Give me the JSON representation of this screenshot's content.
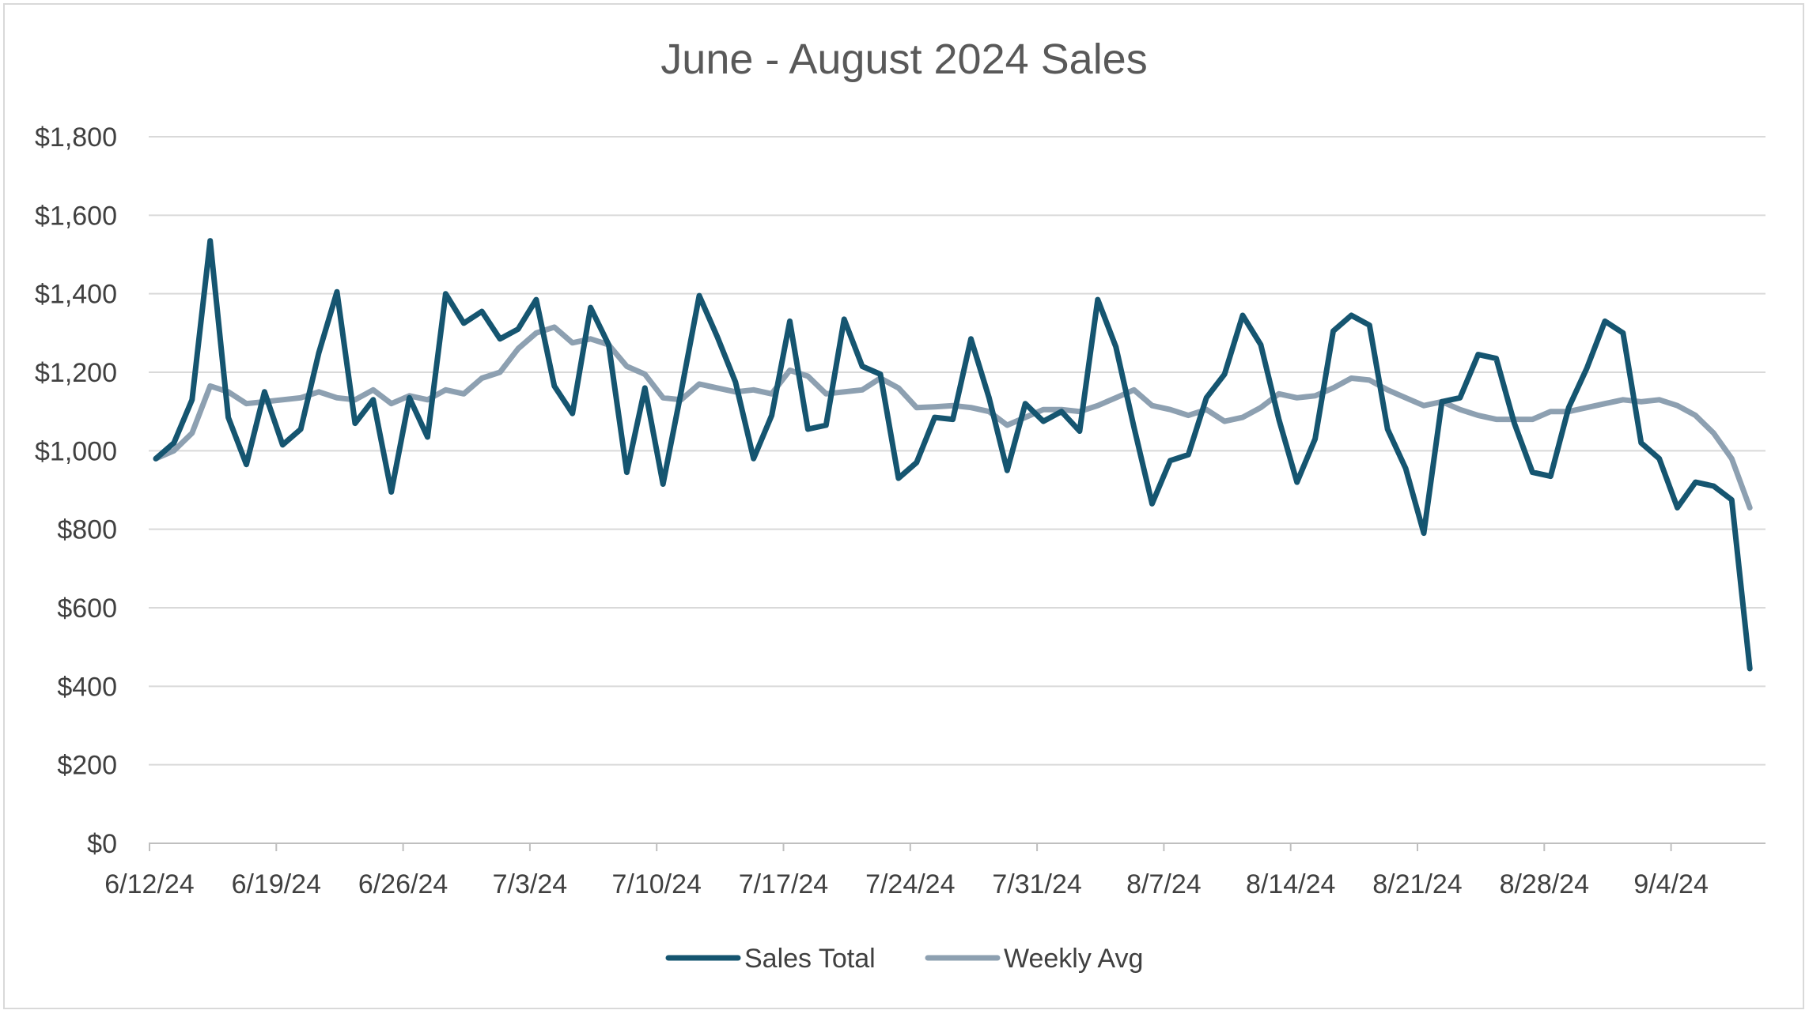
{
  "chart_data": {
    "type": "line",
    "title": "June - August 2024 Sales",
    "xlabel": "",
    "ylabel": "",
    "x_start": "6/12/24",
    "x_end": "9/8/24",
    "ylim": [
      0,
      1800
    ],
    "y_ticks": [
      0,
      200,
      400,
      600,
      800,
      1000,
      1200,
      1400,
      1600,
      1800
    ],
    "y_tick_labels": [
      "$0",
      "$200",
      "$400",
      "$600",
      "$800",
      "$1,000",
      "$1,200",
      "$1,400",
      "$1,600",
      "$1,800"
    ],
    "x_tick_labels": [
      "6/12/24",
      "6/19/24",
      "6/26/24",
      "7/3/24",
      "7/10/24",
      "7/17/24",
      "7/24/24",
      "7/31/24",
      "8/7/24",
      "8/14/24",
      "8/21/24",
      "8/28/24",
      "9/4/24"
    ],
    "grid": true,
    "legend_position": "bottom",
    "series": [
      {
        "name": "Sales Total",
        "color": "#155570",
        "values": [
          980,
          1020,
          1130,
          1535,
          1085,
          965,
          1150,
          1015,
          1055,
          1250,
          1405,
          1070,
          1130,
          895,
          1135,
          1035,
          1400,
          1325,
          1355,
          1285,
          1310,
          1385,
          1165,
          1095,
          1365,
          1270,
          945,
          1160,
          915,
          1150,
          1395,
          1290,
          1175,
          980,
          1090,
          1330,
          1055,
          1065,
          1335,
          1215,
          1195,
          930,
          970,
          1085,
          1080,
          1285,
          1135,
          950,
          1120,
          1075,
          1100,
          1050,
          1385,
          1265,
          1060,
          865,
          975,
          990,
          1135,
          1195,
          1345,
          1270,
          1080,
          920,
          1030,
          1305,
          1345,
          1320,
          1055,
          955,
          790,
          1125,
          1135,
          1245,
          1235,
          1070,
          945,
          935,
          1110,
          1210,
          1330,
          1300,
          1020,
          980,
          855,
          920,
          910,
          875,
          445
        ]
      },
      {
        "name": "Weekly Avg",
        "color": "#8da0b1",
        "values": [
          980,
          1000,
          1045,
          1165,
          1150,
          1120,
          1125,
          1130,
          1135,
          1150,
          1135,
          1130,
          1155,
          1120,
          1140,
          1130,
          1155,
          1145,
          1185,
          1200,
          1260,
          1300,
          1315,
          1275,
          1285,
          1270,
          1215,
          1195,
          1135,
          1130,
          1170,
          1160,
          1150,
          1155,
          1145,
          1205,
          1190,
          1145,
          1150,
          1155,
          1185,
          1160,
          1110,
          1112,
          1115,
          1110,
          1100,
          1065,
          1085,
          1105,
          1105,
          1100,
          1115,
          1135,
          1155,
          1115,
          1105,
          1090,
          1105,
          1075,
          1085,
          1110,
          1145,
          1135,
          1140,
          1160,
          1185,
          1180,
          1155,
          1135,
          1115,
          1125,
          1105,
          1090,
          1080,
          1080,
          1080,
          1100,
          1100,
          1110,
          1120,
          1130,
          1125,
          1130,
          1115,
          1090,
          1045,
          980,
          855
        ]
      }
    ]
  }
}
